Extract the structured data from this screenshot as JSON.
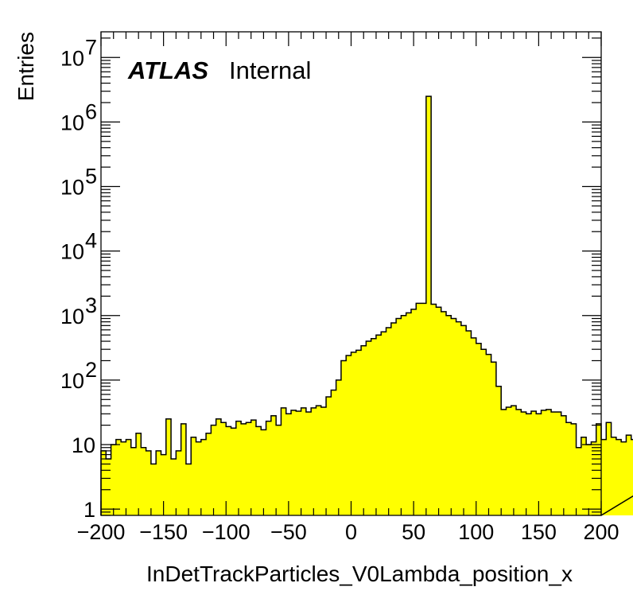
{
  "chart_data": {
    "type": "bar",
    "style": "step-histogram",
    "fill_color": "#ffff00",
    "line_color": "#000000",
    "xlabel": "InDetTrackParticles_V0Lambda_position_x",
    "ylabel": "Entries",
    "xlim": [
      -200,
      200
    ],
    "ylim": [
      0.8,
      25000000
    ],
    "y_scale": "log",
    "grid": false,
    "bin_width": 4,
    "x_ticks": [
      -200,
      -150,
      -100,
      -50,
      0,
      50,
      100,
      150,
      200
    ],
    "x_tick_labels": [
      "−200",
      "−150",
      "−100",
      "−50",
      "0",
      "50",
      "100",
      "150",
      "200"
    ],
    "y_ticks": [
      {
        "value": 1,
        "base": "1",
        "exp": ""
      },
      {
        "value": 10,
        "base": "10",
        "exp": ""
      },
      {
        "value": 100,
        "base": "10",
        "exp": "2"
      },
      {
        "value": 1000,
        "base": "10",
        "exp": "3"
      },
      {
        "value": 10000,
        "base": "10",
        "exp": "4"
      },
      {
        "value": 100000,
        "base": "10",
        "exp": "5"
      },
      {
        "value": 1000000,
        "base": "10",
        "exp": "6"
      },
      {
        "value": 10000000,
        "base": "10",
        "exp": "7"
      }
    ],
    "annotation": {
      "atlas": "ATLAS",
      "label": "Internal"
    },
    "values": [
      8,
      6,
      10,
      12,
      11,
      12,
      9,
      15,
      9,
      8,
      5,
      8,
      7,
      25,
      6,
      8,
      21,
      5,
      13,
      11,
      12,
      15,
      20,
      25,
      22,
      19,
      18,
      23,
      21,
      22,
      24,
      19,
      17,
      23,
      28,
      20,
      37,
      30,
      34,
      33,
      37,
      32,
      37,
      40,
      38,
      55,
      70,
      100,
      200,
      240,
      270,
      290,
      340,
      400,
      440,
      500,
      560,
      650,
      770,
      900,
      1000,
      1100,
      1250,
      1550,
      1550,
      2500000,
      1500,
      1350,
      1150,
      1000,
      900,
      800,
      700,
      580,
      450,
      370,
      300,
      250,
      190,
      80,
      35,
      38,
      40,
      35,
      32,
      30,
      33,
      30,
      34,
      35,
      32,
      32,
      28,
      22,
      21,
      9,
      13,
      10,
      11,
      21,
      12,
      22,
      13,
      12,
      11,
      14,
      12,
      11,
      10,
      8,
      11,
      11,
      5,
      11,
      5,
      10,
      7,
      12,
      13,
      12,
      13,
      12,
      13,
      8,
      12
    ]
  }
}
